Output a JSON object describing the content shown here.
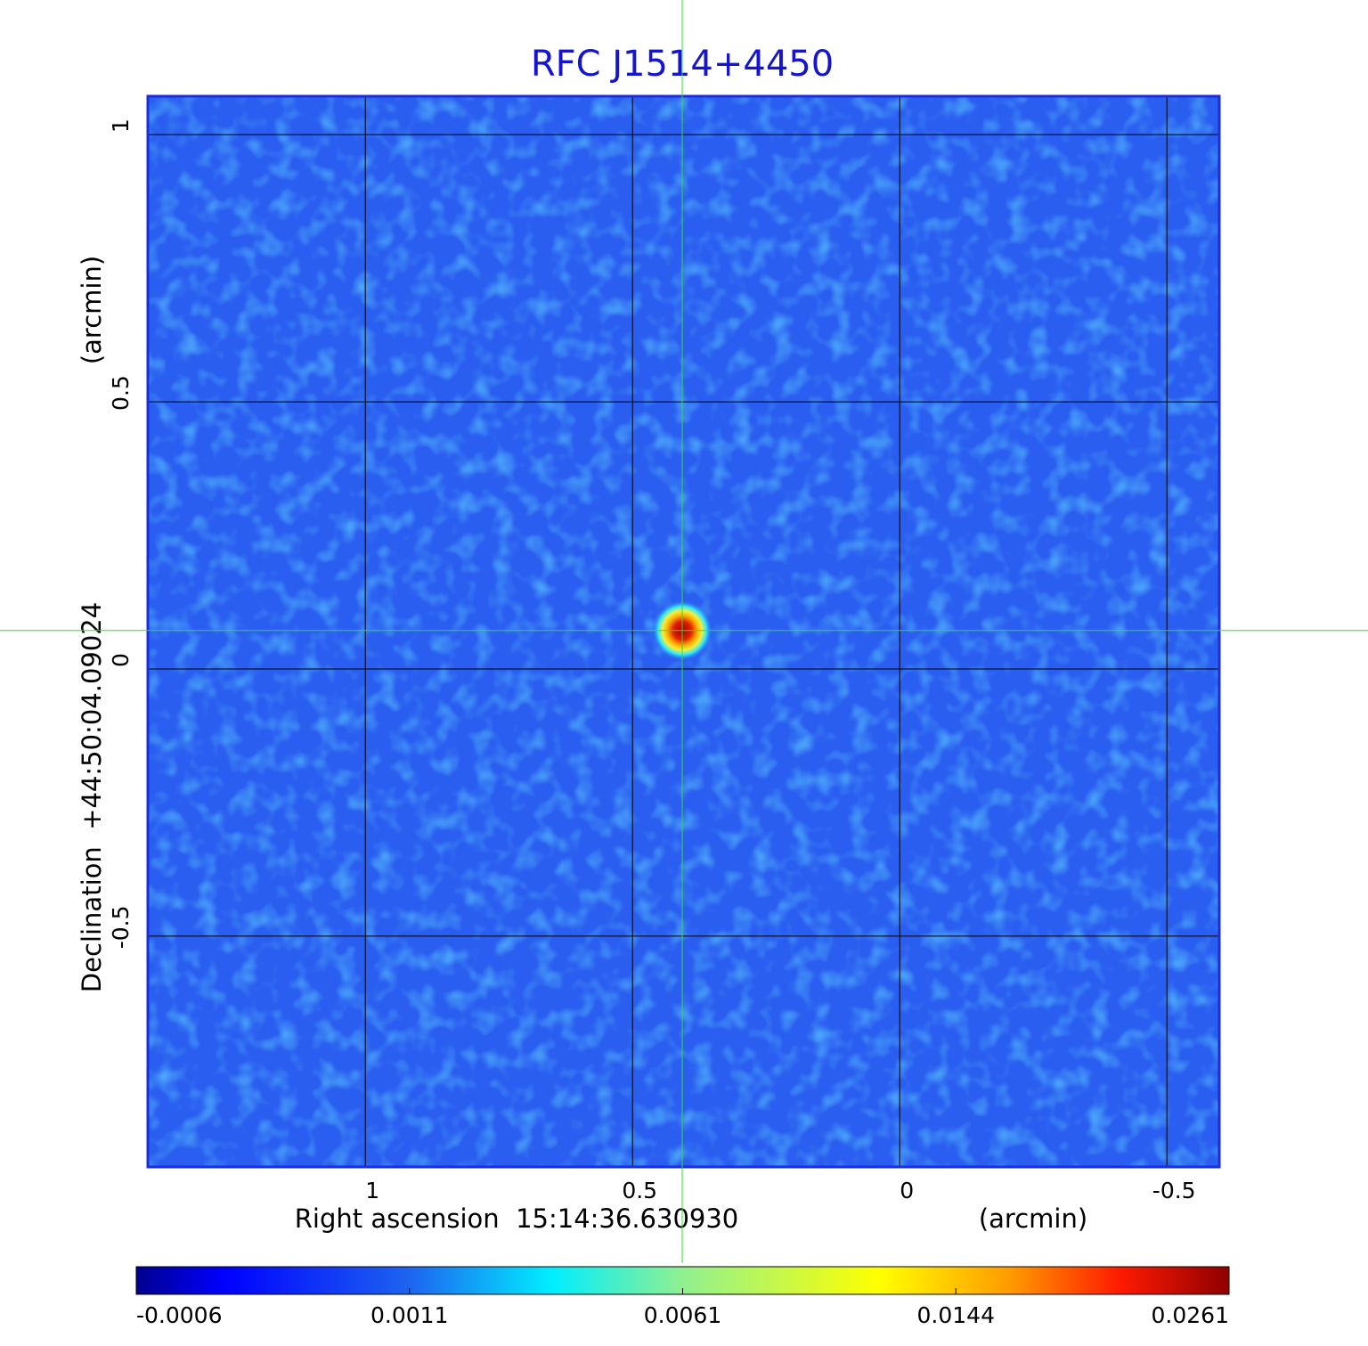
{
  "chart_data": {
    "type": "image",
    "title": "RFC J1514+4450",
    "x_label": "Right ascension  15:14:36.630930",
    "x_unit": "(arcmin)",
    "y_label": "Declination  +44:50:04.09024",
    "y_unit": "(arcmin)",
    "xlim": [
      1.407,
      -0.598
    ],
    "ylim": [
      -0.932,
      1.072
    ],
    "xticks": [
      1.0,
      0.5,
      0.0,
      -0.5
    ],
    "yticks": [
      1.0,
      0.5,
      0.0,
      -0.5
    ],
    "grid": true,
    "crosshair": {
      "x": 0.407,
      "y": 0.072
    },
    "colorbar": {
      "colormap": "jet",
      "ticks": [
        -0.0006,
        0.0011,
        0.0061,
        0.0144,
        0.0261
      ]
    }
  }
}
